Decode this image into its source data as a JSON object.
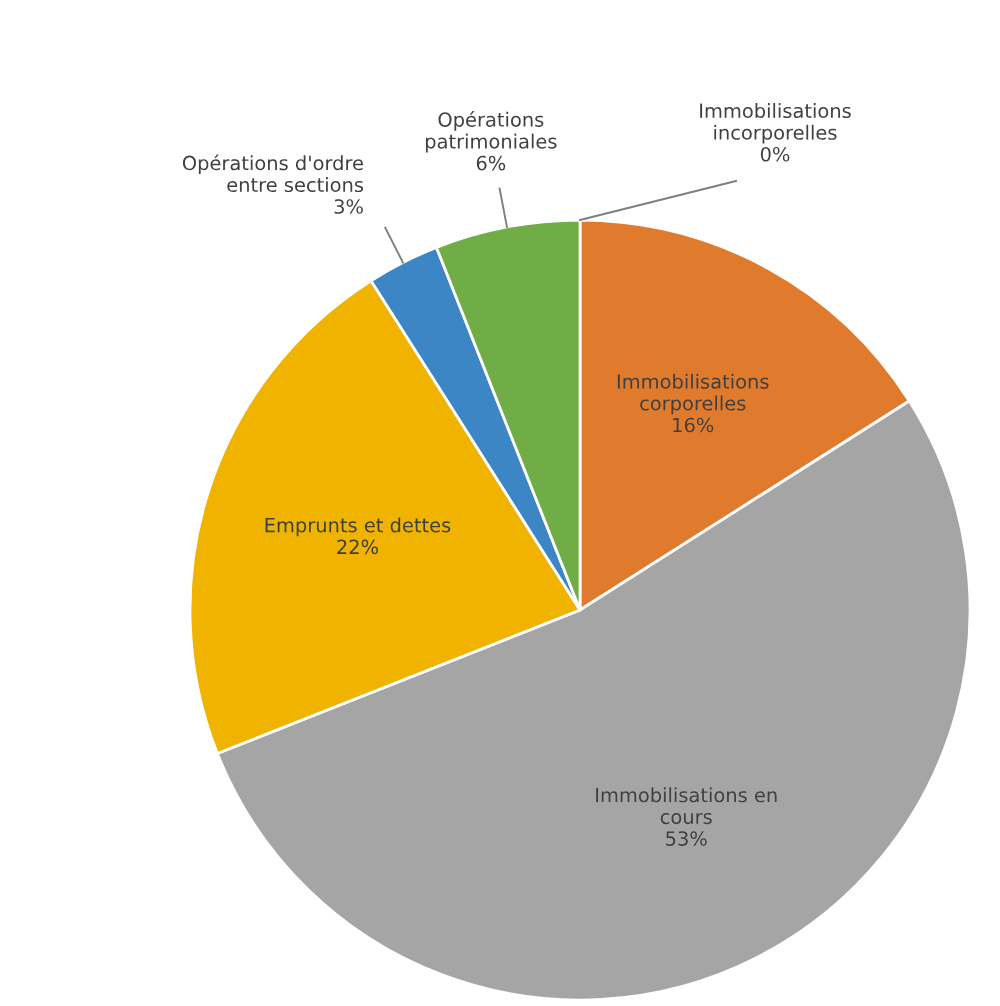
{
  "chart_data": {
    "type": "pie",
    "categories": [
      "Immobilisations\nincorporelles",
      "Immobilisations\ncorporelles",
      "Immobilisations en\ncours",
      "Emprunts et dettes",
      "Opérations d'ordre\nentre sections",
      "Opérations\npatrimoniales"
    ],
    "values": [
      0,
      16,
      53,
      22,
      3,
      6
    ],
    "colors": [
      "#4472c4",
      "#e07b2e",
      "#a5a5a5",
      "#f0b400",
      "#3d86c6",
      "#70ad47"
    ],
    "value_labels": [
      "0%",
      "16%",
      "53%",
      "22%",
      "3%",
      "6%"
    ]
  }
}
